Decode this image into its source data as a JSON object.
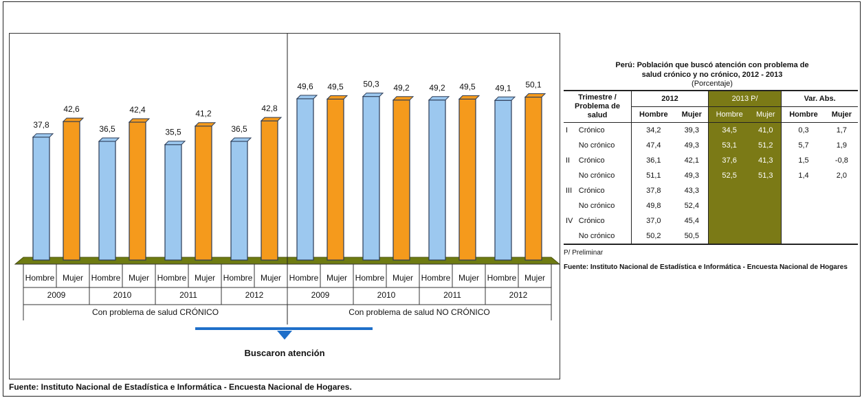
{
  "chart_data": {
    "type": "bar",
    "series": [
      {
        "name": "Hombre",
        "color": "#9cc8ef"
      },
      {
        "name": "Mujer",
        "color": "#f59a1c"
      }
    ],
    "groups": [
      {
        "label": "Con problema de salud CRÓNICO",
        "years": [
          {
            "year": "2009",
            "values": [
              37.8,
              42.6
            ],
            "labels": [
              "37,8",
              "42,6"
            ]
          },
          {
            "year": "2010",
            "values": [
              36.5,
              42.4
            ],
            "labels": [
              "36,5",
              "42,4"
            ]
          },
          {
            "year": "2011",
            "values": [
              35.5,
              41.2
            ],
            "labels": [
              "35,5",
              "41,2"
            ]
          },
          {
            "year": "2012",
            "values": [
              36.5,
              42.8
            ],
            "labels": [
              "36,5",
              "42,8"
            ]
          }
        ]
      },
      {
        "label": "Con problema de salud NO CRÓNICO",
        "years": [
          {
            "year": "2009",
            "values": [
              49.6,
              49.5
            ],
            "labels": [
              "49,6",
              "49,5"
            ]
          },
          {
            "year": "2010",
            "values": [
              50.3,
              49.2
            ],
            "labels": [
              "50,3",
              "49,2"
            ]
          },
          {
            "year": "2011",
            "values": [
              49.2,
              49.5
            ],
            "labels": [
              "49,2",
              "49,5"
            ]
          },
          {
            "year": "2012",
            "values": [
              49.1,
              50.1
            ],
            "labels": [
              "49,1",
              "50,1"
            ]
          }
        ]
      }
    ],
    "category_labels": [
      "Hombre",
      "Mujer"
    ],
    "floor_color": "#6e7b12"
  },
  "arrow_label": "Buscaron atención",
  "bottom_source": "Fuente: Instituto Nacional de Estadística e Informática - Encuesta Nacional de Hogares.",
  "table": {
    "title_line1": "Perú: Población que buscó atención con problema de",
    "title_line2": "salud crónico y no crónico, 2012 - 2013",
    "subtitle": "(Porcentaje)",
    "header_row_label": "Trimestre / Problema de salud",
    "col_2012": "2012",
    "col_2013": "2013 P/",
    "col_var": "Var. Abs.",
    "hombre": "Hombre",
    "mujer": "Mujer",
    "rows": [
      {
        "q": "I",
        "type": "Crónico",
        "v": [
          "34,2",
          "39,3",
          "34,5",
          "41,0",
          "0,3",
          "1,7"
        ]
      },
      {
        "q": "",
        "type": "No crónico",
        "v": [
          "47,4",
          "49,3",
          "53,1",
          "51,2",
          "5,7",
          "1,9"
        ]
      },
      {
        "q": "II",
        "type": "Crónico",
        "v": [
          "36,1",
          "42,1",
          "37,6",
          "41,3",
          "1,5",
          "-0,8"
        ]
      },
      {
        "q": "",
        "type": "No crónico",
        "v": [
          "51,1",
          "49,3",
          "52,5",
          "51,3",
          "1,4",
          "2,0"
        ]
      },
      {
        "q": "III",
        "type": "Crónico",
        "v": [
          "37,8",
          "43,3",
          "",
          "",
          "",
          ""
        ]
      },
      {
        "q": "",
        "type": "No crónico",
        "v": [
          "49,8",
          "52,4",
          "",
          "",
          "",
          ""
        ]
      },
      {
        "q": "IV",
        "type": "Crónico",
        "v": [
          "37,0",
          "45,4",
          "",
          "",
          "",
          ""
        ]
      },
      {
        "q": "",
        "type": "No crónico",
        "v": [
          "50,2",
          "50,5",
          "",
          "",
          "",
          ""
        ]
      }
    ],
    "note": "P/ Preliminar",
    "source": "Fuente: Instituto Nacional de Estadística e Informática - Encuesta Nacional de Hogares"
  }
}
